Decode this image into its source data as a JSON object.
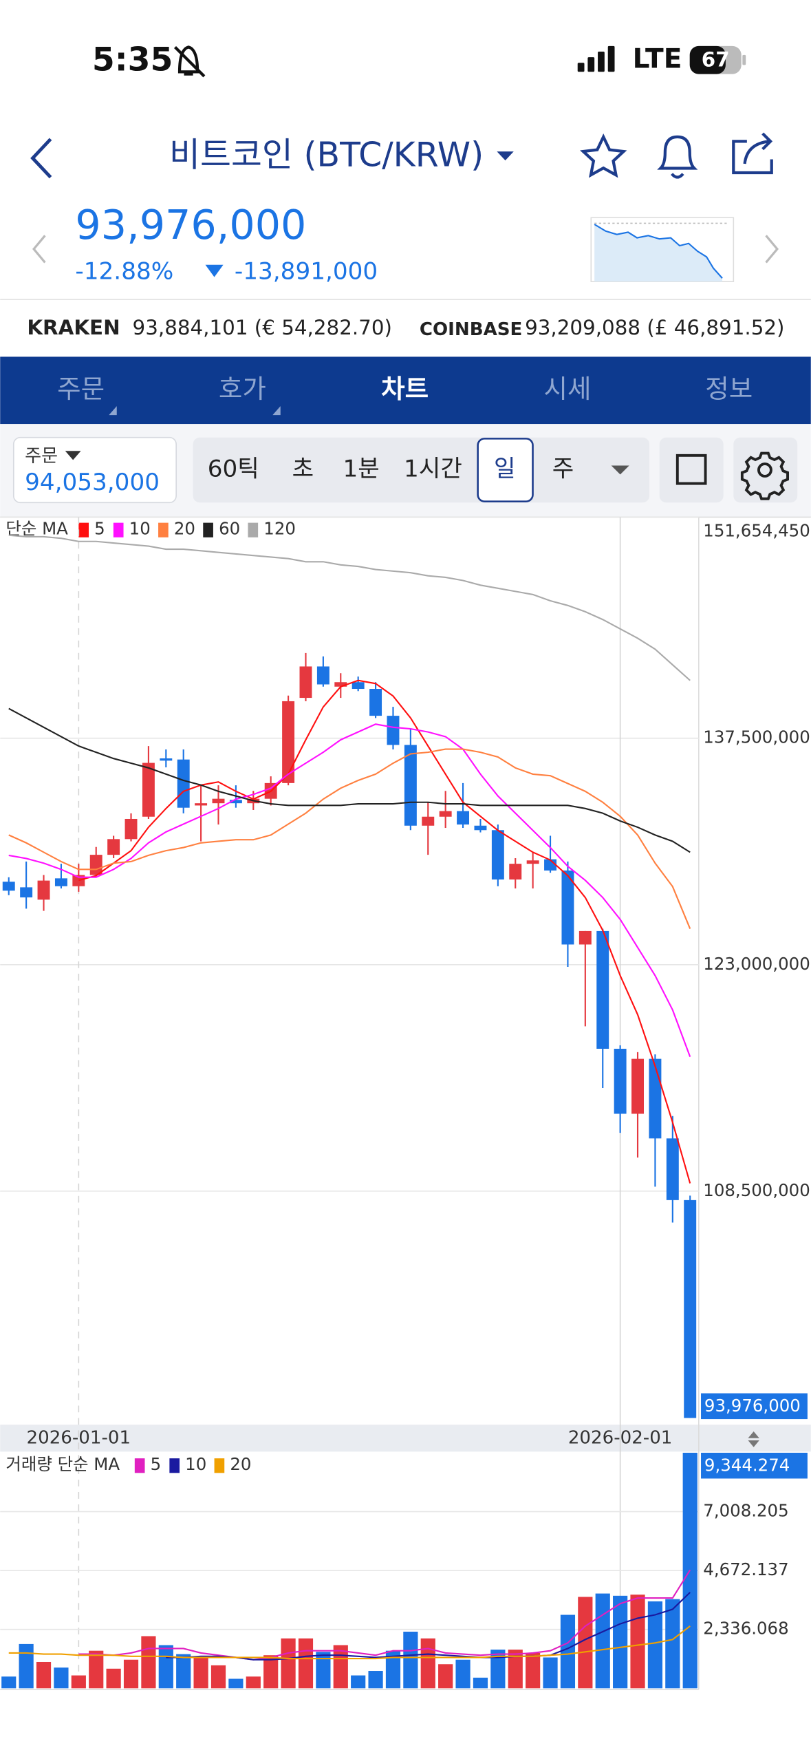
{
  "status_bar": {
    "time": "5:35",
    "network": "LTE",
    "battery": "67"
  },
  "header": {
    "title": "비트코인 (BTC/KRW)"
  },
  "price": {
    "value": "93,976,000",
    "change_rate": "-12.88%",
    "change": "-13,891,000"
  },
  "exchanges": [
    {
      "name": "KRAKEN",
      "price": "93,884,101 (€ 54,282.70)"
    },
    {
      "name": "COINBASE",
      "price": "93,209,088 (£ 46,891.52)"
    }
  ],
  "tabs": [
    "주문",
    "호가",
    "차트",
    "시세",
    "정보"
  ],
  "order": {
    "label": "주문",
    "price": "94,053,000"
  },
  "periods": [
    "60틱",
    "초",
    "1분",
    "1시간",
    "일",
    "주"
  ],
  "chart_data": [
    {
      "type": "candlestick",
      "legend_title": "단순 MA",
      "grid": true,
      "up_color": "#e5383f",
      "down_color": "#1b74e4",
      "categories": [
        null,
        null,
        null,
        null,
        "2026-01-01",
        null,
        null,
        null,
        null,
        null,
        null,
        null,
        null,
        null,
        null,
        null,
        null,
        null,
        null,
        null,
        null,
        null,
        null,
        null,
        null,
        null,
        null,
        null,
        null,
        null,
        null,
        null,
        null,
        null,
        null,
        "2026-02-01",
        null,
        null,
        null,
        null
      ],
      "open": [
        128312000,
        127953000,
        127163000,
        128527000,
        128025000,
        128743000,
        130035000,
        131040000,
        132475000,
        136208000,
        136136000,
        133193000,
        133337000,
        133552000,
        133337000,
        133624000,
        134629000,
        140084000,
        142094000,
        140802000,
        141089000,
        140658000,
        138936000,
        137069000,
        131901000,
        132475000,
        132834000,
        131901000,
        131614000,
        128455000,
        129460000,
        129748000,
        129030000,
        124292000,
        125153000,
        117616000,
        113453000,
        116970000,
        111874000,
        107926000
      ],
      "high": [
        128599000,
        129604000,
        128743000,
        129460000,
        129460000,
        130537000,
        131255000,
        132691000,
        136998000,
        136782000,
        136782000,
        134485000,
        134485000,
        134485000,
        134126000,
        135059000,
        140228000,
        142955000,
        142740000,
        141663000,
        141448000,
        141089000,
        139510000,
        138074000,
        133408000,
        134126000,
        134629000,
        132332000,
        131973000,
        129819000,
        130178000,
        131255000,
        129604000,
        125153000,
        125297000,
        117832000,
        117401000,
        117257000,
        113309000,
        108213000
      ],
      "low": [
        127451000,
        126589000,
        126446000,
        127881000,
        127666000,
        128599000,
        129819000,
        130896000,
        132332000,
        135634000,
        132691000,
        130896000,
        131973000,
        133050000,
        132906000,
        133193000,
        134485000,
        139869000,
        140802000,
        140084000,
        140515000,
        138792000,
        136782000,
        131614000,
        130035000,
        131757000,
        131757000,
        131470000,
        128025000,
        127881000,
        127881000,
        128886000,
        122856000,
        119052000,
        115104000,
        112233000,
        110654000,
        108787000,
        106490000,
        93976000
      ],
      "close": [
        127738000,
        127307000,
        128384000,
        128025000,
        128743000,
        130035000,
        131040000,
        132332000,
        135921000,
        136064000,
        133050000,
        133337000,
        133624000,
        133337000,
        133624000,
        134629000,
        139869000,
        142094000,
        140946000,
        141089000,
        140658000,
        138936000,
        137069000,
        131901000,
        132475000,
        132834000,
        131973000,
        131614000,
        128455000,
        129460000,
        129676000,
        129030000,
        124292000,
        125153000,
        117616000,
        113453000,
        116970000,
        111874000,
        107926000,
        93976000
      ],
      "series": [
        {
          "name": "5",
          "color": "#ff1010",
          "values": [
            null,
            null,
            null,
            null,
            128400000,
            128700000,
            129500000,
            130300000,
            131800000,
            133000000,
            134100000,
            134500000,
            134700000,
            134100000,
            133600000,
            134100000,
            135200000,
            137400000,
            139500000,
            140800000,
            141200000,
            141000000,
            140200000,
            138800000,
            137000000,
            135200000,
            133400000,
            132500000,
            131600000,
            130900000,
            130200000,
            129700000,
            128700000,
            127300000,
            125200000,
            122300000,
            119800000,
            116500000,
            112900000,
            109000000
          ]
        },
        {
          "name": "10",
          "color": "#ff10ff",
          "values": [
            130000000,
            129800000,
            129500000,
            129100000,
            128600000,
            128600000,
            129100000,
            129800000,
            130800000,
            131500000,
            132000000,
            132500000,
            133000000,
            133600000,
            133900000,
            134300000,
            135200000,
            135900000,
            136600000,
            137400000,
            137900000,
            138400000,
            138200000,
            138100000,
            137900000,
            137600000,
            136800000,
            135200000,
            133800000,
            132700000,
            131600000,
            130500000,
            129300000,
            128400000,
            127300000,
            125900000,
            124100000,
            122300000,
            120100000,
            117100000
          ]
        },
        {
          "name": "20",
          "color": "#ff8040",
          "values": [
            131300000,
            130800000,
            130200000,
            129600000,
            129100000,
            129100000,
            129500000,
            129600000,
            130000000,
            130300000,
            130500000,
            130800000,
            130900000,
            131000000,
            131000000,
            131300000,
            132000000,
            132700000,
            133600000,
            134300000,
            134800000,
            135200000,
            135900000,
            136500000,
            136600000,
            136800000,
            136800000,
            136600000,
            136300000,
            135600000,
            135200000,
            135100000,
            134600000,
            134100000,
            133400000,
            132500000,
            131300000,
            129500000,
            128000000,
            125300000
          ]
        },
        {
          "name": "60",
          "color": "#222222",
          "values": [
            139400000,
            138800000,
            138200000,
            137600000,
            137000000,
            136600000,
            136200000,
            135900000,
            135600000,
            135200000,
            134800000,
            134500000,
            134100000,
            133800000,
            133500000,
            133300000,
            133200000,
            133200000,
            133200000,
            133200000,
            133300000,
            133300000,
            133300000,
            133400000,
            133400000,
            133300000,
            133300000,
            133200000,
            133200000,
            133200000,
            133200000,
            133200000,
            133200000,
            133000000,
            132700000,
            132200000,
            131800000,
            131300000,
            130900000,
            130200000
          ]
        },
        {
          "name": "120",
          "color": "#aaaaaa",
          "values": [
            150500000,
            150400000,
            150400000,
            150300000,
            150100000,
            150100000,
            150000000,
            149900000,
            149800000,
            149600000,
            149600000,
            149500000,
            149400000,
            149300000,
            149200000,
            149100000,
            149000000,
            148800000,
            148800000,
            148600000,
            148500000,
            148300000,
            148200000,
            148100000,
            147900000,
            147800000,
            147600000,
            147300000,
            147100000,
            146900000,
            146700000,
            146300000,
            146000000,
            145600000,
            145100000,
            144500000,
            143900000,
            143200000,
            142200000,
            141200000
          ]
        }
      ],
      "ylim": [
        93976000,
        151654450
      ],
      "yticks": [
        {
          "value": 151654450,
          "label": "151,654,450"
        },
        {
          "value": 137500000,
          "label": "137,500,000"
        },
        {
          "value": 123000000,
          "label": "123,000,000"
        },
        {
          "value": 108500000,
          "label": "108,500,000"
        }
      ],
      "last": {
        "value": 93976000,
        "label": "93,976,000"
      }
    },
    {
      "type": "bar",
      "legend_title": "거래량 단순 MA",
      "grid": true,
      "values": [
        467,
        1758,
        1046,
        823,
        512,
        1491,
        779,
        1135,
        2069,
        1713,
        1357,
        1224,
        912,
        378,
        467,
        1313,
        1980,
        1980,
        1446,
        1713,
        512,
        690,
        1491,
        2247,
        1980,
        957,
        1135,
        423,
        1535,
        1535,
        1402,
        1224,
        2915,
        3627,
        3760,
        3671,
        3716,
        3449,
        3538,
        9344.274
      ],
      "series": [
        {
          "name": "5",
          "color": "#e020c0",
          "values": [
            null,
            null,
            null,
            null,
            1357,
            1357,
            1313,
            1402,
            1580,
            1580,
            1580,
            1402,
            1313,
            1224,
            1135,
            1224,
            1402,
            1491,
            1491,
            1491,
            1402,
            1313,
            1491,
            1491,
            1580,
            1402,
            1357,
            1313,
            1357,
            1357,
            1402,
            1491,
            1802,
            2470,
            2915,
            3360,
            3582,
            3582,
            3582,
            4695
          ]
        },
        {
          "name": "10",
          "color": "#1a1aa0",
          "values": [
            null,
            null,
            null,
            null,
            null,
            null,
            null,
            null,
            null,
            1224,
            1224,
            1268,
            1268,
            1224,
            1135,
            1135,
            1179,
            1268,
            1313,
            1313,
            1268,
            1224,
            1268,
            1313,
            1357,
            1313,
            1268,
            1224,
            1224,
            1268,
            1268,
            1313,
            1580,
            1936,
            2247,
            2559,
            2781,
            2915,
            3137,
            3805
          ]
        },
        {
          "name": "20",
          "color": "#f0a000",
          "values": [
            1402,
            1402,
            1357,
            1357,
            1313,
            1313,
            1313,
            1268,
            1268,
            1268,
            1224,
            1224,
            1224,
            1224,
            1224,
            1224,
            1179,
            1179,
            1179,
            1179,
            1179,
            1179,
            1224,
            1224,
            1224,
            1224,
            1224,
            1224,
            1268,
            1268,
            1268,
            1313,
            1357,
            1446,
            1535,
            1624,
            1713,
            1802,
            1936,
            2470
          ]
        }
      ],
      "ylim": [
        0,
        9344.274
      ],
      "yticks": [
        {
          "value": 2336.068,
          "label": "2,336.068"
        },
        {
          "value": 4672.137,
          "label": "4,672.137"
        },
        {
          "value": 7008.205,
          "label": "7,008.205"
        }
      ],
      "last": {
        "value": 9344.274,
        "label": "9,344.274"
      }
    }
  ]
}
